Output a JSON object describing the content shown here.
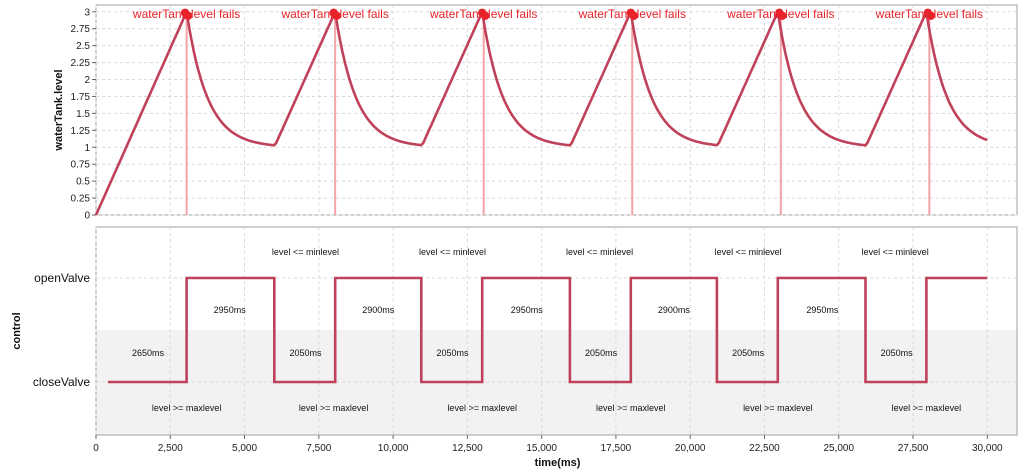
{
  "chart_data": [
    {
      "type": "line",
      "ylabel": "waterTank.level",
      "xlim": [
        0,
        31000
      ],
      "ylim": [
        0,
        3.1
      ],
      "yticks": [
        0,
        0.25,
        0.5,
        0.75,
        1,
        1.25,
        1.5,
        1.75,
        2,
        2.25,
        2.5,
        2.75,
        3
      ],
      "ytick_labels": [
        "0",
        "0.25",
        "0.5",
        "0.75",
        "1",
        "1.25",
        "1.5",
        "1.75",
        "2",
        "2.25",
        "2.5",
        "2.75",
        "3"
      ],
      "grid": true,
      "series": [
        {
          "color": "#c0415a",
          "pattern": {
            "fill_rate_per_ms": 0.000976,
            "rise_from_level": 1,
            "rise_to_level": 3,
            "drain_floor": 1,
            "drain_time_constant_ms": 700,
            "initial_level": 0
          }
        }
      ],
      "fail_markers": {
        "label": "waterTank level fails",
        "color": "#e8232a",
        "x": [
          3050,
          8050,
          13050,
          18050,
          23050,
          28050
        ],
        "y": [
          3,
          3,
          3,
          3,
          3,
          3
        ]
      }
    },
    {
      "type": "line",
      "ylabel": "control",
      "xlabel": "time(ms)",
      "xlim": [
        0,
        31000
      ],
      "categories": [
        "closeValve",
        "openValve"
      ],
      "xticks": [
        0,
        2500,
        5000,
        7500,
        10000,
        12500,
        15000,
        17500,
        20000,
        22500,
        25000,
        27500,
        30000
      ],
      "xtick_labels": [
        "0",
        "2,500",
        "5,000",
        "7,500",
        "10,000",
        "12,500",
        "15,000",
        "17,500",
        "20,000",
        "22,500",
        "25,000",
        "27,500",
        "30,000"
      ],
      "grid": true,
      "series": [
        {
          "color": "#c0415a",
          "steps": [
            {
              "x": 400,
              "state": "closeValve"
            },
            {
              "x": 3050,
              "state": "openValve"
            },
            {
              "x": 6000,
              "state": "closeValve"
            },
            {
              "x": 8050,
              "state": "openValve"
            },
            {
              "x": 10950,
              "state": "closeValve"
            },
            {
              "x": 13000,
              "state": "openValve"
            },
            {
              "x": 15950,
              "state": "closeValve"
            },
            {
              "x": 18000,
              "state": "openValve"
            },
            {
              "x": 20900,
              "state": "closeValve"
            },
            {
              "x": 22950,
              "state": "openValve"
            },
            {
              "x": 25900,
              "state": "closeValve"
            },
            {
              "x": 27950,
              "state": "openValve"
            },
            {
              "x": 30000,
              "state": "openValve"
            }
          ]
        }
      ],
      "annotations": {
        "open_durations": [
          {
            "x": 4500,
            "text": "2950ms"
          },
          {
            "x": 9500,
            "text": "2900ms"
          },
          {
            "x": 14500,
            "text": "2950ms"
          },
          {
            "x": 19450,
            "text": "2900ms"
          },
          {
            "x": 24450,
            "text": "2950ms"
          }
        ],
        "close_durations": [
          {
            "x": 1750,
            "text": "2650ms"
          },
          {
            "x": 7050,
            "text": "2050ms"
          },
          {
            "x": 12000,
            "text": "2050ms"
          },
          {
            "x": 17000,
            "text": "2050ms"
          },
          {
            "x": 21950,
            "text": "2050ms"
          },
          {
            "x": 26950,
            "text": "2050ms"
          }
        ],
        "open_conditions": [
          {
            "x": 7050,
            "text": "level <= minlevel"
          },
          {
            "x": 12000,
            "text": "level <= minlevel"
          },
          {
            "x": 16950,
            "text": "level <= minlevel"
          },
          {
            "x": 21950,
            "text": "level <= minlevel"
          },
          {
            "x": 26900,
            "text": "level <= minlevel"
          }
        ],
        "close_conditions": [
          {
            "x": 3050,
            "text": "level >= maxlevel"
          },
          {
            "x": 8000,
            "text": "level >= maxlevel"
          },
          {
            "x": 13000,
            "text": "level >= maxlevel"
          },
          {
            "x": 18000,
            "text": "level >= maxlevel"
          },
          {
            "x": 22950,
            "text": "level >= maxlevel"
          },
          {
            "x": 27950,
            "text": "level >= maxlevel"
          }
        ]
      }
    }
  ]
}
